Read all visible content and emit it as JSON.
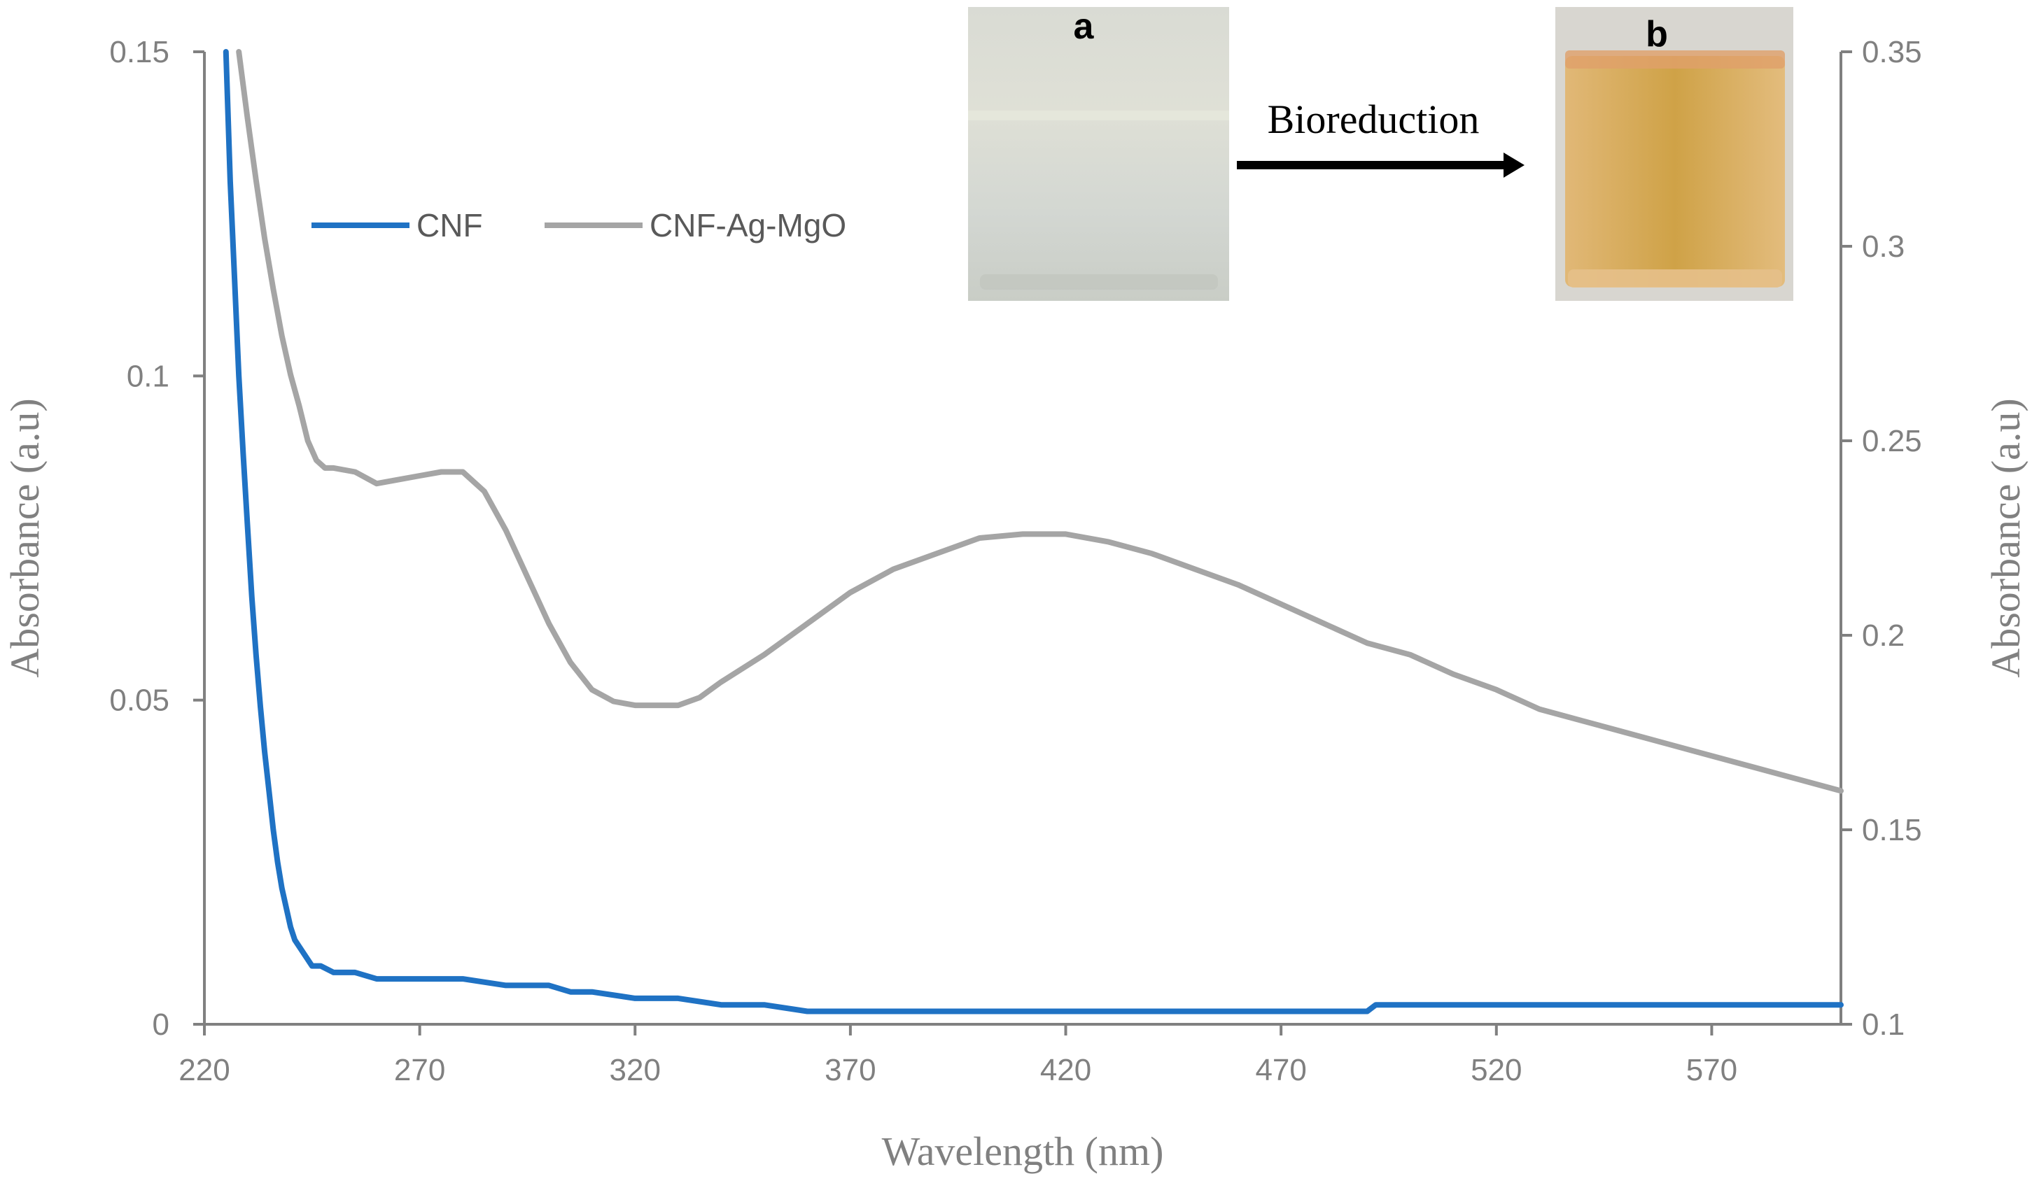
{
  "chart_data": {
    "type": "line",
    "title": "",
    "xlabel": "Wavelength (nm)",
    "ylabel_left": "Absorbance (a.u)",
    "ylabel_right": "Absorbance (a.u)",
    "xlim": [
      220,
      600
    ],
    "ylim_left": [
      0,
      0.15
    ],
    "ylim_right": [
      0.1,
      0.35
    ],
    "x_ticks": [
      220,
      270,
      320,
      370,
      420,
      470,
      520,
      570
    ],
    "y_left_ticks": [
      "0",
      "0.05",
      "0.1",
      "0.15"
    ],
    "y_left_tick_values": [
      0,
      0.05,
      0.1,
      0.15
    ],
    "y_right_ticks": [
      "0.1",
      "0.15",
      "0.2",
      "0.25",
      "0.3",
      "0.35"
    ],
    "y_right_tick_values": [
      0.1,
      0.15,
      0.2,
      0.25,
      0.3,
      0.35
    ],
    "legend_position": "upper-left",
    "series": [
      {
        "name": "CNF",
        "axis": "left",
        "color": "#1f72c4",
        "x": [
          225,
          226,
          227,
          228,
          229,
          230,
          231,
          232,
          233,
          234,
          235,
          236,
          237,
          238,
          239,
          240,
          241,
          243,
          245,
          247,
          250,
          255,
          260,
          265,
          270,
          280,
          290,
          300,
          305,
          310,
          320,
          330,
          340,
          350,
          360,
          370,
          380,
          390,
          400,
          410,
          420,
          430,
          440,
          450,
          460,
          470,
          480,
          490,
          492,
          500,
          520,
          540,
          550,
          560,
          570,
          580,
          590,
          600
        ],
        "y": [
          0.15,
          0.13,
          0.115,
          0.1,
          0.088,
          0.077,
          0.066,
          0.057,
          0.049,
          0.042,
          0.036,
          0.03,
          0.025,
          0.021,
          0.018,
          0.015,
          0.013,
          0.011,
          0.009,
          0.009,
          0.008,
          0.008,
          0.007,
          0.007,
          0.007,
          0.007,
          0.006,
          0.006,
          0.005,
          0.005,
          0.004,
          0.004,
          0.003,
          0.003,
          0.002,
          0.002,
          0.002,
          0.002,
          0.002,
          0.002,
          0.002,
          0.002,
          0.002,
          0.002,
          0.002,
          0.002,
          0.002,
          0.002,
          0.003,
          0.003,
          0.003,
          0.003,
          0.003,
          0.003,
          0.003,
          0.003,
          0.003,
          0.003
        ]
      },
      {
        "name": "CNF-Ag-MgO",
        "axis": "right",
        "color": "#a5a5a5",
        "x": [
          228,
          230,
          232,
          234,
          236,
          238,
          240,
          242,
          244,
          246,
          248,
          250,
          255,
          260,
          265,
          270,
          275,
          280,
          285,
          290,
          295,
          300,
          305,
          310,
          315,
          320,
          325,
          330,
          335,
          340,
          350,
          360,
          370,
          380,
          390,
          400,
          410,
          420,
          430,
          440,
          450,
          460,
          470,
          480,
          490,
          500,
          510,
          520,
          530,
          540,
          550,
          560,
          570,
          580,
          590,
          600
        ],
        "y": [
          0.35,
          0.333,
          0.317,
          0.302,
          0.289,
          0.277,
          0.267,
          0.259,
          0.25,
          0.245,
          0.243,
          0.243,
          0.242,
          0.239,
          0.24,
          0.241,
          0.242,
          0.242,
          0.237,
          0.227,
          0.215,
          0.203,
          0.193,
          0.186,
          0.183,
          0.182,
          0.182,
          0.182,
          0.184,
          0.188,
          0.195,
          0.203,
          0.211,
          0.217,
          0.221,
          0.225,
          0.226,
          0.226,
          0.224,
          0.221,
          0.217,
          0.213,
          0.208,
          0.203,
          0.198,
          0.195,
          0.19,
          0.186,
          0.181,
          0.178,
          0.175,
          0.172,
          0.169,
          0.166,
          0.163,
          0.16
        ]
      }
    ],
    "insets": {
      "a_label": "a",
      "b_label": "b",
      "arrow_label": "Bioreduction",
      "a_color": "#d9dcd6",
      "b_color": "#d4a44e"
    }
  }
}
